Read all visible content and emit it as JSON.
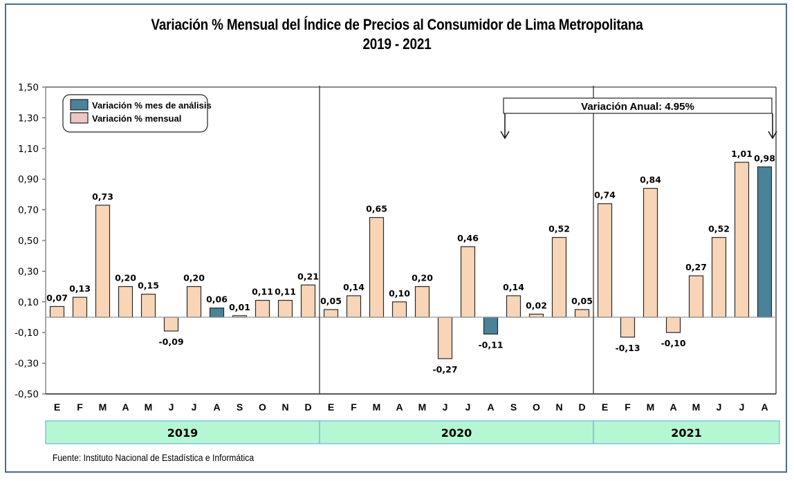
{
  "chart_data": {
    "type": "bar",
    "title": "Variación % Mensual del Índice de Precios al Consumidor de Lima Metropolitana",
    "subtitle": "2019 - 2021",
    "xlabel": "",
    "ylabel": "",
    "ylim": [
      -0.5,
      1.5
    ],
    "yticks": [
      1.5,
      1.3,
      1.1,
      0.9,
      0.7,
      0.5,
      0.3,
      0.1,
      -0.1,
      -0.3,
      -0.5
    ],
    "ytick_labels": [
      "1,50",
      "1,30",
      "1,10",
      "0,90",
      "0,70",
      "0,50",
      "0,30",
      "0,10",
      "-0,10",
      "-0,30",
      "-0,50"
    ],
    "grid": false,
    "legend_position": "top-left",
    "legend": [
      {
        "name": "Variación % mes de análisis",
        "color": "#4a8299"
      },
      {
        "name": "Variación % mensual",
        "color": "#eec6c6"
      }
    ],
    "colors": {
      "normal": "#f7d5b6",
      "highlight": "#4a8299",
      "year_band": "#b5f7d2",
      "year_band_border": "#6ab3e6",
      "frame": "#4a6a96"
    },
    "years": [
      {
        "label": "2019",
        "start": 0,
        "count": 12
      },
      {
        "label": "2020",
        "start": 12,
        "count": 12
      },
      {
        "label": "2021",
        "start": 24,
        "count": 8
      }
    ],
    "categories": [
      "E",
      "F",
      "M",
      "A",
      "M",
      "J",
      "J",
      "A",
      "S",
      "O",
      "N",
      "D",
      "E",
      "F",
      "M",
      "A",
      "M",
      "J",
      "J",
      "A",
      "S",
      "O",
      "N",
      "D",
      "E",
      "F",
      "M",
      "A",
      "M",
      "J",
      "J",
      "A"
    ],
    "values": [
      0.07,
      0.13,
      0.73,
      0.2,
      0.15,
      -0.09,
      0.2,
      0.06,
      0.01,
      0.11,
      0.11,
      0.21,
      0.05,
      0.14,
      0.65,
      0.1,
      0.2,
      -0.27,
      0.46,
      -0.11,
      0.14,
      0.02,
      0.52,
      0.05,
      0.74,
      -0.13,
      0.84,
      -0.1,
      0.27,
      0.52,
      1.01,
      0.98
    ],
    "value_labels": [
      "0,07",
      "0,13",
      "0,73",
      "0,20",
      "0,15",
      "-0,09",
      "0,20",
      "0,06",
      "0,01",
      "0,11",
      "0,11",
      "0,21",
      "0,05",
      "0,14",
      "0,65",
      "0,10",
      "0,20",
      "-0,27",
      "0,46",
      "-0,11",
      "0,14",
      "0,02",
      "0,52",
      "0,05",
      "0,74",
      "-0,13",
      "0,84",
      "-0,10",
      "0,27",
      "0,52",
      "1,01",
      "0,98"
    ],
    "highlight_indices": [
      7,
      19,
      31
    ],
    "annotation": {
      "text": "Variación Anual: 4.95%",
      "from_index": 20,
      "to_index": 31
    }
  },
  "source": "Fuente: Instituto Nacional de Estadística e Informática"
}
